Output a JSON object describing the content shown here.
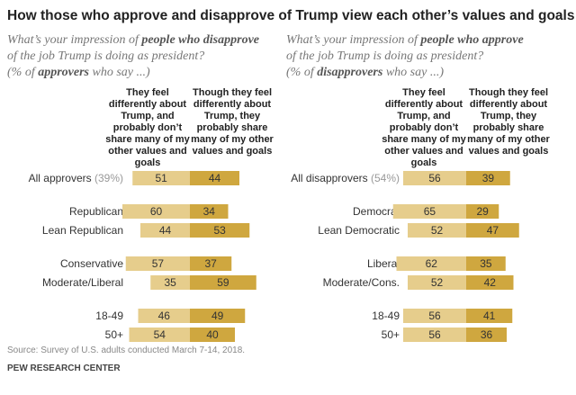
{
  "title": "How those who approve and disapprove of Trump view each other’s values and goals",
  "source": "Source: Survey of U.S. adults conducted March 7-14, 2018.",
  "credit": "PEW RESEARCH CENTER",
  "chart_data": [
    {
      "type": "bar",
      "question": [
        "What’s your impression of ",
        "people who disapprove",
        "of the job Trump is doing as president?"
      ],
      "note": [
        "(% of ",
        "approvers",
        " who say ...)"
      ],
      "categories": [
        "All approvers",
        null,
        "Republican",
        "Lean Republican",
        null,
        "Conservative",
        "Moderate/Liberal",
        null,
        "18-49",
        "50+"
      ],
      "category_notes": [
        "(39%)",
        null,
        null,
        null,
        null,
        null,
        null,
        null,
        null,
        null
      ],
      "series": [
        {
          "name": "They feel differently about Trump, and probably don’t share many of my other values and goals",
          "color": "#e6cd8c",
          "values": [
            51,
            null,
            60,
            44,
            null,
            57,
            35,
            null,
            46,
            54
          ]
        },
        {
          "name": "Though they feel differently about Trump, they probably share many of my other values and goals",
          "color": "#cfa73f",
          "values": [
            44,
            null,
            34,
            53,
            null,
            37,
            59,
            null,
            49,
            40
          ]
        }
      ]
    },
    {
      "type": "bar",
      "question": [
        "What’s your impression of ",
        "people who approve",
        "of the job Trump is doing as president?"
      ],
      "note": [
        "(% of ",
        "disapprovers",
        " who say ...)"
      ],
      "categories": [
        "All disapprovers",
        null,
        "Democrat",
        "Lean Democratic",
        null,
        "Liberal",
        "Moderate/Cons.",
        null,
        "18-49",
        "50+"
      ],
      "category_notes": [
        "(54%)",
        null,
        null,
        null,
        null,
        null,
        null,
        null,
        null,
        null
      ],
      "series": [
        {
          "name": "They feel differently about Trump, and probably don’t share many of my other values and goals",
          "color": "#e6cd8c",
          "values": [
            56,
            null,
            65,
            52,
            null,
            62,
            52,
            null,
            56,
            56
          ]
        },
        {
          "name": "Though they feel differently about Trump, they probably share many of my other values and goals",
          "color": "#cfa73f",
          "values": [
            39,
            null,
            29,
            47,
            null,
            35,
            42,
            null,
            41,
            36
          ]
        }
      ]
    }
  ]
}
